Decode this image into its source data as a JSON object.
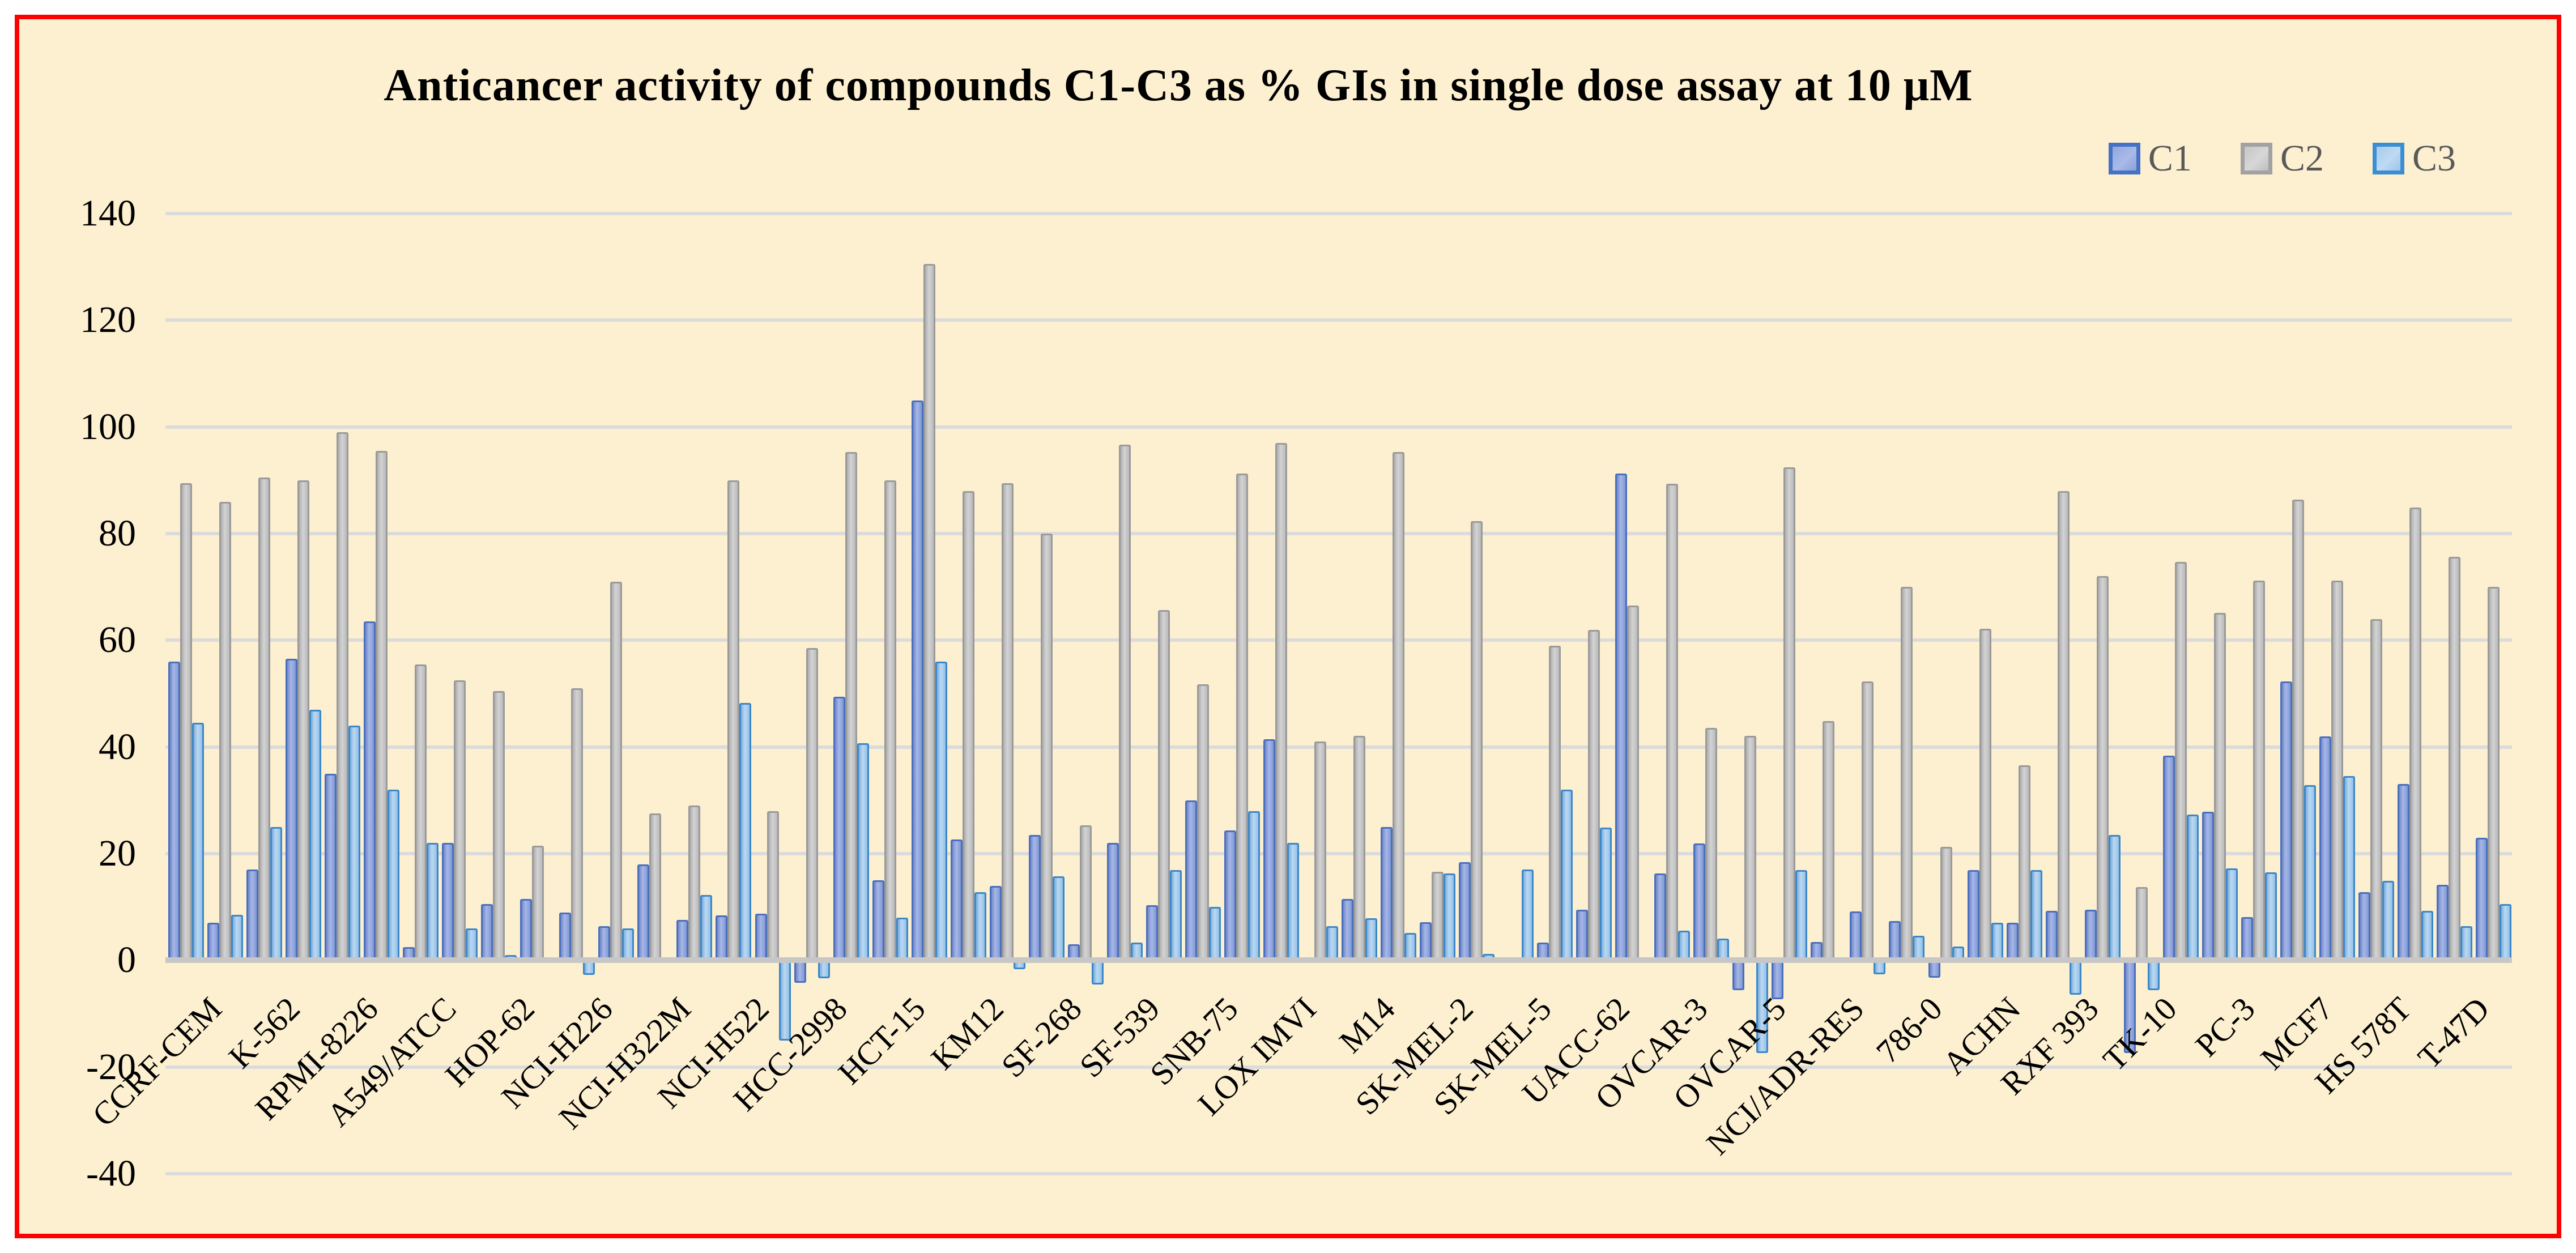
{
  "chart_data": {
    "type": "bar",
    "title": "Anticancer activity of compounds C1-C3 as % GIs in single dose assay at 10 μM",
    "ylim": [
      -40,
      140
    ],
    "ytick_step": 20,
    "yticks": [
      140,
      120,
      100,
      80,
      60,
      40,
      20,
      0,
      -20,
      -40
    ],
    "n_groups": 60,
    "x_label_every_n_groups": 2,
    "grid": "horizontal",
    "legend_position": "top-right",
    "x_tick_labels": [
      "CCRF-CEM",
      "K-562",
      "RPMI-8226",
      "A549/ATCC",
      "HOP-62",
      "NCI-H226",
      "NCI-H322M",
      "NCI-H522",
      "HCC-2998",
      "HCT-15",
      "KM12",
      "SF-268",
      "SF-539",
      "SNB-75",
      "LOX IMVI",
      "M14",
      "SK-MEL-2",
      "SK-MEL-5",
      "UACC-62",
      "OVCAR-3",
      "OVCAR-5",
      "NCI/ADR-RES",
      "786-0",
      "ACHN",
      "RXF 393",
      "TK-10",
      "PC-3",
      "MCF7",
      "HS 578T",
      "T-47D"
    ],
    "series": [
      {
        "name": "C1",
        "values": [
          56,
          7,
          17,
          56.5,
          35,
          63.5,
          2.5,
          22,
          10.5,
          11.5,
          9,
          6.4,
          18,
          7.6,
          8.4,
          8.7,
          -4.2,
          49.4,
          15,
          105,
          22.7,
          14,
          23.5,
          3,
          22,
          10.3,
          30,
          24.4,
          41.5,
          0,
          11.5,
          25,
          7.2,
          18.4,
          0,
          3.3,
          9.5,
          91.3,
          16.3,
          21.9,
          -5.6,
          -7.3,
          3.4,
          9.2,
          7.4,
          -3.3,
          16.9,
          7,
          9.3,
          9.5,
          -17.4,
          38.4,
          27.9,
          8.1,
          52.3,
          42,
          12.8,
          33.1,
          14.2,
          23
        ]
      },
      {
        "name": "C2",
        "values": [
          89.5,
          86,
          90.5,
          90,
          99,
          95.5,
          55.5,
          52.5,
          50.5,
          21.5,
          51,
          71,
          27.5,
          29,
          90,
          28,
          58.5,
          95.3,
          90,
          130.5,
          88,
          89.5,
          80,
          25.3,
          96.7,
          65.7,
          51.7,
          91.3,
          97,
          41,
          42.1,
          95.3,
          16.6,
          82.3,
          0,
          59,
          62,
          66.5,
          89.3,
          43.6,
          42.1,
          92.4,
          44.8,
          52.3,
          70,
          21.3,
          62.2,
          36.6,
          88,
          72,
          13.7,
          74.7,
          65.1,
          71.2,
          86.4,
          71.2,
          64,
          84.9,
          75.6,
          70
        ]
      },
      {
        "name": "C3",
        "values": [
          44.5,
          8.5,
          25,
          47,
          44,
          32,
          22,
          6,
          1,
          0.5,
          -2.7,
          6,
          0.4,
          12.2,
          48.3,
          -15,
          -3.4,
          40.7,
          8,
          56,
          12.8,
          -1.7,
          15.7,
          -4.5,
          3.3,
          16.9,
          10,
          28,
          22,
          6.4,
          7.9,
          5.1,
          16.3,
          1.2,
          17,
          32,
          24.9,
          0.3,
          5.6,
          4.1,
          -17.4,
          16.9,
          0,
          -2.6,
          4.6,
          2.6,
          7,
          16.9,
          -6.4,
          23.5,
          -5.6,
          27.3,
          17.2,
          16.5,
          32.9,
          34.5,
          14.9,
          9.3,
          6.4,
          10.5
        ]
      }
    ],
    "colors": {
      "background": "#fdf0d1",
      "frame_border": "#ff0000",
      "gridline": "#dbdbdb",
      "axis_line": "#c7c7c7",
      "title_text": "#000000",
      "legend_text": "#595959",
      "c1_fill": "#8fa3dc",
      "c1_border": "#4472c4",
      "c2_fill": "#c9c9c9",
      "c2_border": "#9a9a9a",
      "c3_fill": "#9dc3e6",
      "c3_border": "#3b8ed2"
    }
  }
}
